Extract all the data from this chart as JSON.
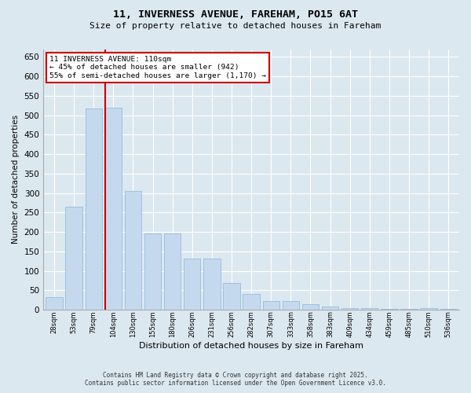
{
  "title_line1": "11, INVERNESS AVENUE, FAREHAM, PO15 6AT",
  "title_line2": "Size of property relative to detached houses in Fareham",
  "xlabel": "Distribution of detached houses by size in Fareham",
  "ylabel": "Number of detached properties",
  "categories": [
    "28sqm",
    "53sqm",
    "79sqm",
    "104sqm",
    "130sqm",
    "155sqm",
    "180sqm",
    "206sqm",
    "231sqm",
    "256sqm",
    "282sqm",
    "307sqm",
    "333sqm",
    "358sqm",
    "383sqm",
    "409sqm",
    "434sqm",
    "459sqm",
    "485sqm",
    "510sqm",
    "536sqm"
  ],
  "values": [
    32,
    265,
    518,
    520,
    305,
    197,
    197,
    132,
    132,
    68,
    40,
    22,
    22,
    14,
    8,
    5,
    5,
    2,
    2,
    5,
    2
  ],
  "bar_color": "#c5d9ee",
  "bar_edgecolor": "#89b4d9",
  "vline_index": 3,
  "vline_color": "#cc0000",
  "annotation_title": "11 INVERNESS AVENUE: 110sqm",
  "annotation_line1": "← 45% of detached houses are smaller (942)",
  "annotation_line2": "55% of semi-detached houses are larger (1,170) →",
  "ylim": [
    0,
    670
  ],
  "yticks": [
    0,
    50,
    100,
    150,
    200,
    250,
    300,
    350,
    400,
    450,
    500,
    550,
    600,
    650
  ],
  "footer_line1": "Contains HM Land Registry data © Crown copyright and database right 2025.",
  "footer_line2": "Contains public sector information licensed under the Open Government Licence v3.0.",
  "bg_color": "#dce8f0",
  "plot_bg_color": "#dce8f0",
  "grid_color": "#ffffff"
}
